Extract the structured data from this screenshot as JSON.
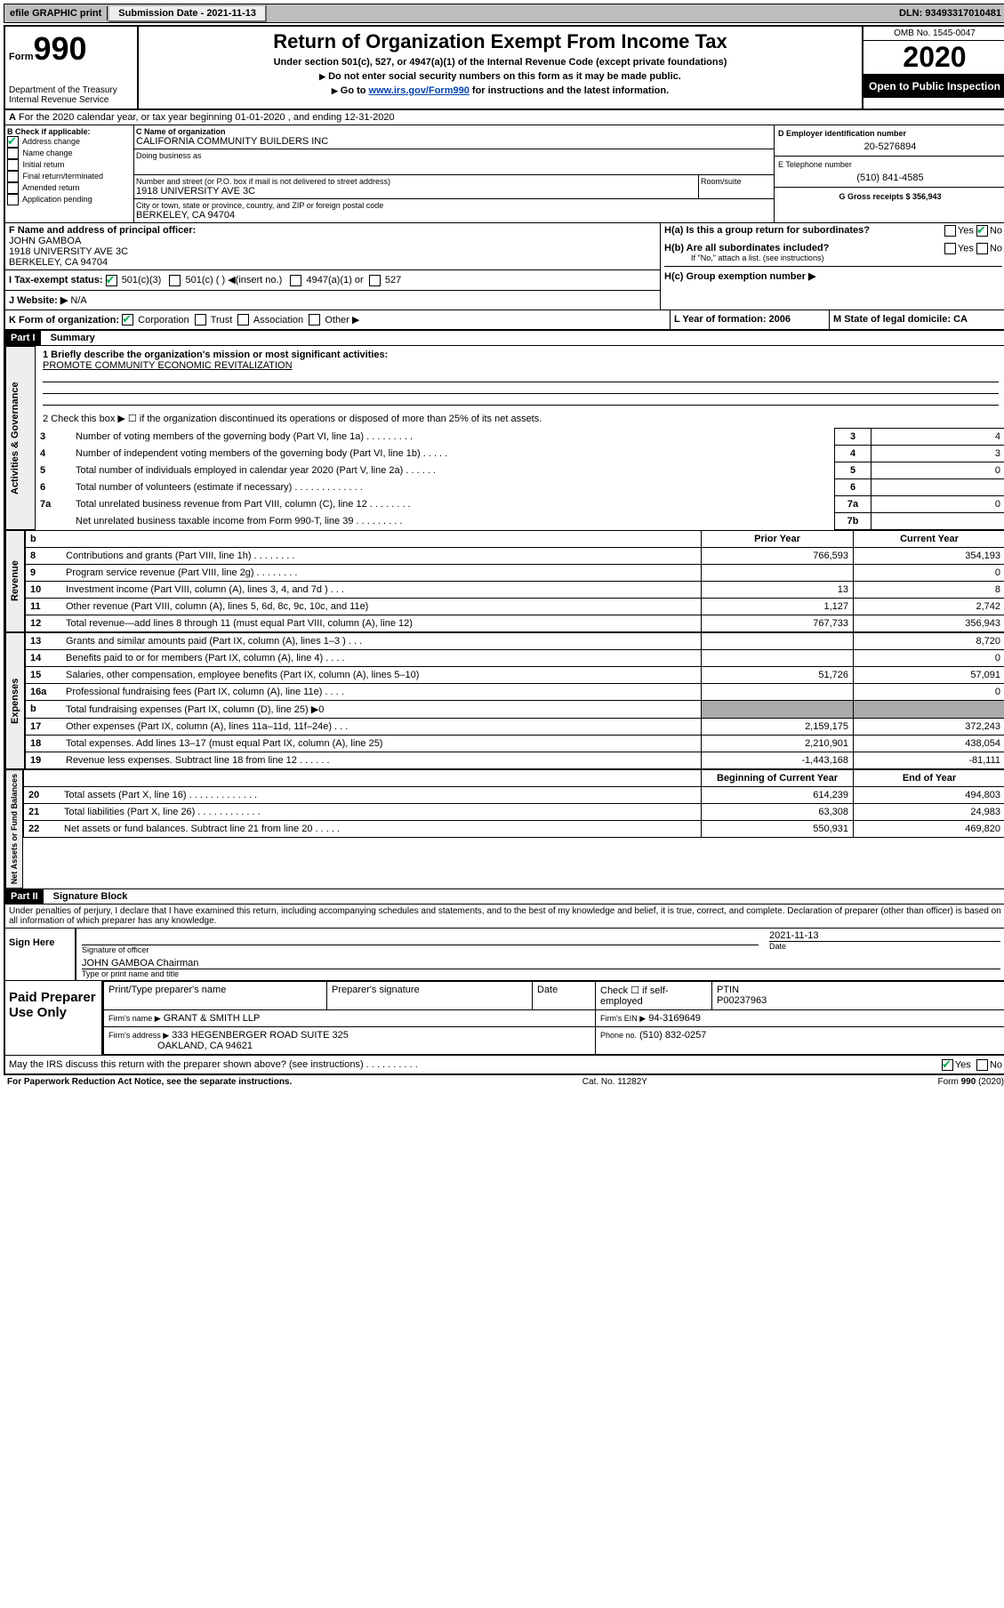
{
  "header": {
    "efile": "efile GRAPHIC print",
    "submission_label": "Submission Date - 2021-11-13",
    "dln": "DLN: 93493317010481"
  },
  "form_header": {
    "form_label": "Form",
    "form_number": "990",
    "dept": "Department of the Treasury",
    "irs": "Internal Revenue Service",
    "title": "Return of Organization Exempt From Income Tax",
    "subtitle": "Under section 501(c), 527, or 4947(a)(1) of the Internal Revenue Code (except private foundations)",
    "notice1": "Do not enter social security numbers on this form as it may be made public.",
    "notice2_prefix": "Go to ",
    "notice2_link": "www.irs.gov/Form990",
    "notice2_suffix": " for instructions and the latest information.",
    "omb": "OMB No. 1545-0047",
    "year": "2020",
    "inspection": "Open to Public Inspection"
  },
  "period": {
    "line": "For the 2020 calendar year, or tax year beginning 01-01-2020   , and ending 12-31-2020",
    "label": "A"
  },
  "section_b": {
    "title": "B Check if applicable:",
    "opts": [
      "Address change",
      "Name change",
      "Initial return",
      "Final return/terminated",
      "Amended return",
      "Application pending"
    ],
    "checked_index": 0
  },
  "section_c": {
    "name_label": "C Name of organization",
    "name": "CALIFORNIA COMMUNITY BUILDERS INC",
    "dba_label": "Doing business as",
    "street_label": "Number and street (or P.O. box if mail is not delivered to street address)",
    "room_label": "Room/suite",
    "street": "1918 UNIVERSITY AVE 3C",
    "city_label": "City or town, state or province, country, and ZIP or foreign postal code",
    "city": "BERKELEY, CA  94704"
  },
  "section_d": {
    "label": "D Employer identification number",
    "value": "20-5276894"
  },
  "section_e": {
    "label": "E Telephone number",
    "value": "(510) 841-4585"
  },
  "section_g": {
    "label": "G Gross receipts $ 356,943"
  },
  "section_f": {
    "label": "F Name and address of principal officer:",
    "name": "JOHN GAMBOA",
    "addr1": "1918 UNIVERSITY AVE 3C",
    "addr2": "BERKELEY, CA  94704"
  },
  "section_h": {
    "ha": "H(a)  Is this a group return for subordinates?",
    "hb": "H(b)  Are all subordinates included?",
    "hb_note": "If \"No,\" attach a list. (see instructions)",
    "hc": "H(c)  Group exemption number ▶",
    "yes": "Yes",
    "no": "No"
  },
  "section_i": {
    "label": "I   Tax-exempt status:",
    "opts": [
      "501(c)(3)",
      "501(c) (  ) ◀(insert no.)",
      "4947(a)(1) or",
      "527"
    ]
  },
  "section_j": {
    "label": "J   Website: ▶",
    "value": "N/A"
  },
  "section_k": {
    "label": "K Form of organization:",
    "opts": [
      "Corporation",
      "Trust",
      "Association",
      "Other ▶"
    ]
  },
  "section_l": {
    "label": "L Year of formation: 2006"
  },
  "section_m": {
    "label": "M State of legal domicile: CA"
  },
  "part1": {
    "title": "Part I",
    "subtitle": "Summary",
    "line1_label": "1  Briefly describe the organization's mission or most significant activities:",
    "line1_value": "PROMOTE COMMUNITY ECONOMIC REVITALIZATION",
    "line2": "2   Check this box ▶ ☐  if the organization discontinued its operations or disposed of more than 25% of its net assets.",
    "rows_governance": [
      {
        "num": "3",
        "text": "Number of voting members of the governing body (Part VI, line 1a)  .   .   .   .   .   .   .   .   .",
        "box": "3",
        "val": "4"
      },
      {
        "num": "4",
        "text": "Number of independent voting members of the governing body (Part VI, line 1b) .   .   .   .   .",
        "box": "4",
        "val": "3"
      },
      {
        "num": "5",
        "text": "Total number of individuals employed in calendar year 2020 (Part V, line 2a) .   .   .   .   .   .",
        "box": "5",
        "val": "0"
      },
      {
        "num": "6",
        "text": "Total number of volunteers (estimate if necessary)  .   .   .   .   .   .   .   .   .   .   .   .   .",
        "box": "6",
        "val": ""
      },
      {
        "num": "7a",
        "text": "Total unrelated business revenue from Part VIII, column (C), line 12  .   .   .   .   .   .   .   .",
        "box": "7a",
        "val": "0"
      },
      {
        "num": "",
        "text": "Net unrelated business taxable income from Form 990-T, line 39  .   .   .   .   .   .   .   .   .",
        "box": "7b",
        "val": ""
      }
    ],
    "col_headers": {
      "b": "b",
      "prior": "Prior Year",
      "current": "Current Year"
    },
    "rows_revenue": [
      {
        "num": "8",
        "text": "Contributions and grants (Part VIII, line 1h)  .   .   .   .   .   .   .   .",
        "prior": "766,593",
        "cur": "354,193"
      },
      {
        "num": "9",
        "text": "Program service revenue (Part VIII, line 2g)  .   .   .   .   .   .   .   .",
        "prior": "",
        "cur": "0"
      },
      {
        "num": "10",
        "text": "Investment income (Part VIII, column (A), lines 3, 4, and 7d )  .   .   .",
        "prior": "13",
        "cur": "8"
      },
      {
        "num": "11",
        "text": "Other revenue (Part VIII, column (A), lines 5, 6d, 8c, 9c, 10c, and 11e)",
        "prior": "1,127",
        "cur": "2,742"
      },
      {
        "num": "12",
        "text": "Total revenue—add lines 8 through 11 (must equal Part VIII, column (A), line 12)",
        "prior": "767,733",
        "cur": "356,943"
      }
    ],
    "rows_expenses": [
      {
        "num": "13",
        "text": "Grants and similar amounts paid (Part IX, column (A), lines 1–3 )  .   .   .",
        "prior": "",
        "cur": "8,720"
      },
      {
        "num": "14",
        "text": "Benefits paid to or for members (Part IX, column (A), line 4)  .   .   .   .",
        "prior": "",
        "cur": "0"
      },
      {
        "num": "15",
        "text": "Salaries, other compensation, employee benefits (Part IX, column (A), lines 5–10)",
        "prior": "51,726",
        "cur": "57,091"
      },
      {
        "num": "16a",
        "text": "Professional fundraising fees (Part IX, column (A), line 11e)  .   .   .   .",
        "prior": "",
        "cur": "0"
      },
      {
        "num": "b",
        "text": "Total fundraising expenses (Part IX, column (D), line 25) ▶0",
        "prior": "SHADE",
        "cur": "SHADE"
      },
      {
        "num": "17",
        "text": "Other expenses (Part IX, column (A), lines 11a–11d, 11f–24e)  .   .   .",
        "prior": "2,159,175",
        "cur": "372,243"
      },
      {
        "num": "18",
        "text": "Total expenses. Add lines 13–17 (must equal Part IX, column (A), line 25)",
        "prior": "2,210,901",
        "cur": "438,054"
      },
      {
        "num": "19",
        "text": "Revenue less expenses. Subtract line 18 from line 12 .   .   .   .   .   .",
        "prior": "-1,443,168",
        "cur": "-81,111"
      }
    ],
    "col_headers2": {
      "begin": "Beginning of Current Year",
      "end": "End of Year"
    },
    "rows_netassets": [
      {
        "num": "20",
        "text": "Total assets (Part X, line 16)  .   .   .   .   .   .   .   .   .   .   .   .   .",
        "prior": "614,239",
        "cur": "494,803"
      },
      {
        "num": "21",
        "text": "Total liabilities (Part X, line 26)  .   .   .   .   .   .   .   .   .   .   .   .",
        "prior": "63,308",
        "cur": "24,983"
      },
      {
        "num": "22",
        "text": "Net assets or fund balances. Subtract line 21 from line 20 .   .   .   .   .",
        "prior": "550,931",
        "cur": "469,820"
      }
    ],
    "side_labels": {
      "governance": "Activities & Governance",
      "revenue": "Revenue",
      "expenses": "Expenses",
      "netassets": "Net Assets or Fund Balances"
    }
  },
  "part2": {
    "title": "Part II",
    "subtitle": "Signature Block",
    "declaration": "Under penalties of perjury, I declare that I have examined this return, including accompanying schedules and statements, and to the best of my knowledge and belief, it is true, correct, and complete. Declaration of preparer (other than officer) is based on all information of which preparer has any knowledge.",
    "sign_here": "Sign Here",
    "sig_officer": "Signature of officer",
    "sig_date": "2021-11-13",
    "date_label": "Date",
    "officer_name": "JOHN GAMBOA Chairman",
    "officer_type": "Type or print name and title",
    "paid": "Paid Preparer Use Only",
    "prep_name_label": "Print/Type preparer's name",
    "prep_sig_label": "Preparer's signature",
    "prep_date_label": "Date",
    "self_emp": "Check ☐ if self-employed",
    "ptin_label": "PTIN",
    "ptin": "P00237963",
    "firm_name_label": "Firm's name    ▶",
    "firm_name": "GRANT & SMITH LLP",
    "firm_ein_label": "Firm's EIN ▶",
    "firm_ein": "94-3169649",
    "firm_addr_label": "Firm's address ▶",
    "firm_addr1": "333 HEGENBERGER ROAD SUITE 325",
    "firm_addr2": "OAKLAND, CA  94621",
    "phone_label": "Phone no.",
    "phone": "(510) 832-0257",
    "discuss": "May the IRS discuss this return with the preparer shown above? (see instructions)  .   .   .   .   .   .   .   .   .   .",
    "yes": "Yes",
    "no": "No"
  },
  "footer": {
    "left": "For Paperwork Reduction Act Notice, see the separate instructions.",
    "center": "Cat. No. 11282Y",
    "right": "Form 990 (2020)"
  }
}
